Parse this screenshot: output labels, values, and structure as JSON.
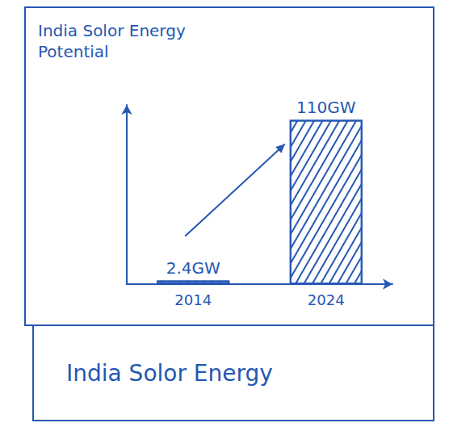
{
  "chart_data": {
    "type": "bar",
    "title": "India Solor Energy Potential",
    "subtitle": "India Solor Energy",
    "categories": [
      "2014",
      "2024"
    ],
    "values": [
      2.4,
      110
    ],
    "value_labels": [
      "2.4GW",
      "110GW"
    ],
    "color": "#2557b3",
    "ylim": [
      0,
      120
    ],
    "grid": false,
    "data_labels": true,
    "tick_labels": "x"
  }
}
